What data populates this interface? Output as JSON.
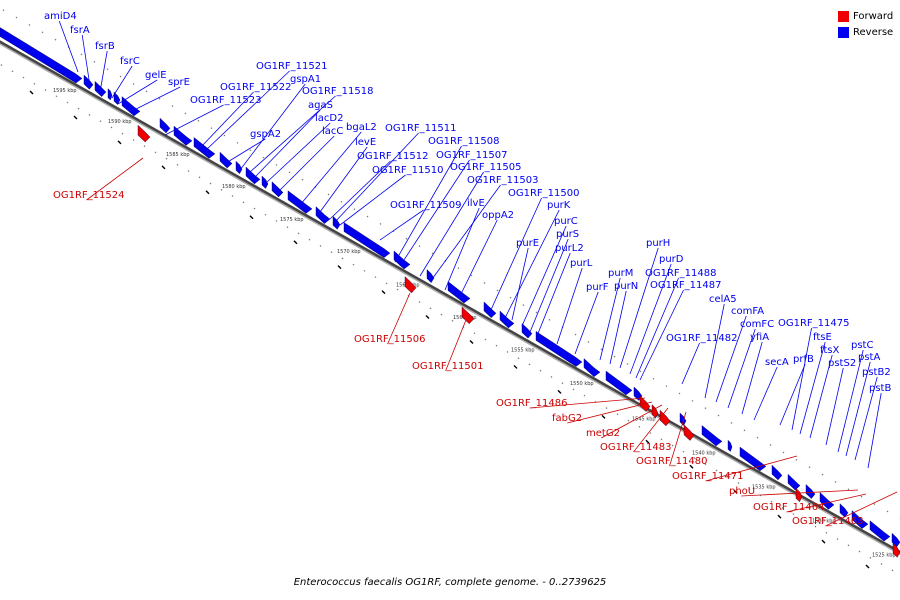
{
  "genome": {
    "caption": "Enterococcus faecalis OG1RF, complete genome. - 0..2739625"
  },
  "legend": {
    "forward_label": "Forward",
    "reverse_label": "Reverse",
    "forward_color": "#ee0000",
    "reverse_color": "#0000ee"
  },
  "axis_labels": [
    "1595 kbp",
    "1590 kbp",
    "1585 kbp",
    "1580 kbp",
    "1575 kbp",
    "1570 kbp",
    "1565 kbp",
    "1560 kbp",
    "1555 kbp",
    "1550 kbp",
    "1545 kbp",
    "1540 kbp",
    "1535 kbp",
    "1530 kbp",
    "1525 kbp"
  ],
  "reverse_genes": [
    "amiD4",
    "fsrA",
    "fsrB",
    "fsrC",
    "gelE",
    "sprE",
    "OG1RF_11523",
    "OG1RF_11522",
    "OG1RF_11521",
    "gspA2",
    "gspA1",
    "OG1RF_11518",
    "agaS",
    "lacD2",
    "lacC",
    "bgaL2",
    "levE",
    "OG1RF_11512",
    "OG1RF_11511",
    "OG1RF_11510",
    "OG1RF_11509",
    "OG1RF_11508",
    "OG1RF_11507",
    "OG1RF_11505",
    "OG1RF_11503",
    "ilvE",
    "oppA2",
    "OG1RF_11500",
    "purK",
    "purE",
    "purC",
    "purS",
    "purL2",
    "purL",
    "purF",
    "purM",
    "purN",
    "purH",
    "purD",
    "OG1RF_11488",
    "OG1RF_11487",
    "OG1RF_11482",
    "celA5",
    "comFA",
    "comFC",
    "yfiA",
    "secA",
    "prfB",
    "OG1RF_11475",
    "ftsE",
    "ftsX",
    "pstS2",
    "pstC",
    "pstA",
    "pstB2",
    "pstB"
  ],
  "forward_genes": [
    "OG1RF_11524",
    "OG1RF_11506",
    "OG1RF_11501",
    "OG1RF_11486",
    "fabG2",
    "metG2",
    "OG1RF_11483",
    "OG1RF_11480",
    "OG1RF_11471",
    "phoU",
    "OG1RF_11464",
    "OG1RF_11463"
  ]
}
